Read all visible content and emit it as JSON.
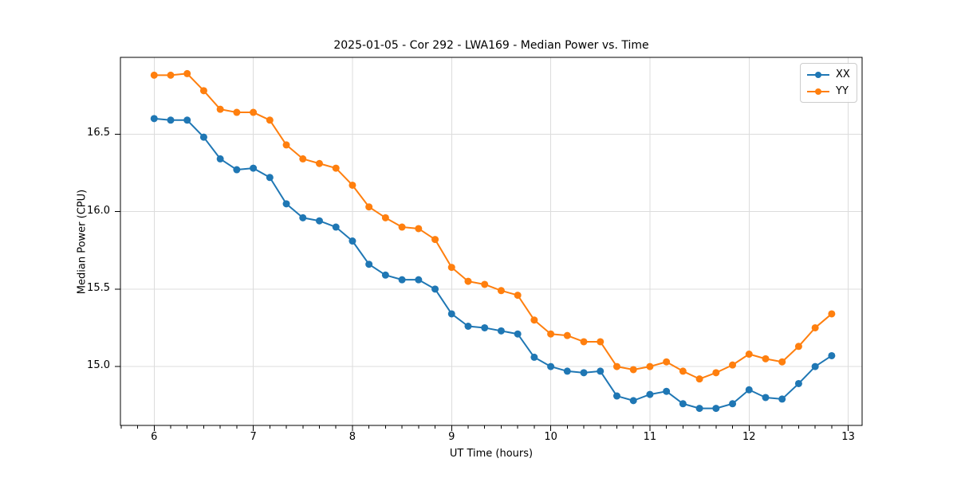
{
  "chart_data": {
    "type": "line",
    "title": "2025-01-05 - Cor 292 - LWA169 - Median Power vs. Time",
    "xlabel": "UT Time (hours)",
    "ylabel": "Median Power (CPU)",
    "xlim": [
      5.66,
      13.14
    ],
    "ylim": [
      14.62,
      16.995
    ],
    "xticks": [
      6,
      7,
      8,
      9,
      10,
      11,
      12,
      13
    ],
    "xtick_labels": [
      "6",
      "7",
      "8",
      "9",
      "10",
      "11",
      "12",
      "13"
    ],
    "yticks": [
      15.0,
      15.5,
      16.0,
      16.5
    ],
    "ytick_labels": [
      "15.0",
      "15.5",
      "16.0",
      "16.5"
    ],
    "minor_tick_step_x": 0.166667,
    "grid": true,
    "legend_position": "upper right",
    "x": [
      6.0,
      6.1667,
      6.3333,
      6.5,
      6.6667,
      6.8333,
      7.0,
      7.1667,
      7.3333,
      7.5,
      7.6667,
      7.8333,
      8.0,
      8.1667,
      8.3333,
      8.5,
      8.6667,
      8.8333,
      9.0,
      9.1667,
      9.3333,
      9.5,
      9.6667,
      9.8333,
      10.0,
      10.1667,
      10.3333,
      10.5,
      10.6667,
      10.8333,
      11.0,
      11.1667,
      11.3333,
      11.5,
      11.6667,
      11.8333,
      12.0,
      12.1667,
      12.3333,
      12.5,
      12.6667,
      12.8333
    ],
    "series": [
      {
        "name": "XX",
        "color": "#1f77b4",
        "values": [
          16.6,
          16.59,
          16.59,
          16.48,
          16.34,
          16.27,
          16.28,
          16.22,
          16.05,
          15.96,
          15.94,
          15.9,
          15.81,
          15.66,
          15.59,
          15.56,
          15.56,
          15.5,
          15.34,
          15.26,
          15.25,
          15.23,
          15.21,
          15.06,
          15.0,
          14.97,
          14.96,
          14.97,
          14.81,
          14.78,
          14.82,
          14.84,
          14.76,
          14.73,
          14.73,
          14.76,
          14.85,
          14.8,
          14.79,
          14.89,
          15.0,
          15.07
        ]
      },
      {
        "name": "YY",
        "color": "#ff7f0e",
        "values": [
          16.88,
          16.88,
          16.89,
          16.78,
          16.66,
          16.64,
          16.64,
          16.59,
          16.43,
          16.34,
          16.31,
          16.28,
          16.17,
          16.03,
          15.96,
          15.9,
          15.89,
          15.82,
          15.64,
          15.55,
          15.53,
          15.49,
          15.46,
          15.3,
          15.21,
          15.2,
          15.16,
          15.16,
          15.0,
          14.98,
          15.0,
          15.03,
          14.97,
          14.92,
          14.96,
          15.01,
          15.08,
          15.05,
          15.03,
          15.13,
          15.25,
          15.34
        ]
      }
    ]
  },
  "colors": {
    "grid": "#dcdcdc",
    "spine": "#000000",
    "text": "#000000",
    "legend_border": "#cccccc"
  }
}
